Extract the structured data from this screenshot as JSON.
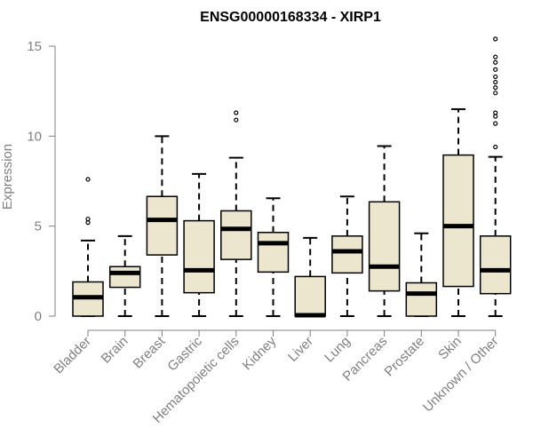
{
  "chart_data": {
    "type": "box",
    "title": "ENSG00000168334 - XIRP1",
    "ylabel": "Expression",
    "xlabel": "",
    "ylim": [
      0,
      15.5
    ],
    "yticks": [
      0,
      5,
      10,
      15
    ],
    "box_fill": "#ede6ce",
    "categories": [
      "Bladder",
      "Brain",
      "Breast",
      "Gastric",
      "Hematopoietic cells",
      "Kidney",
      "Liver",
      "Lung",
      "Pancreas",
      "Prostate",
      "Skin",
      "Unknown / Other"
    ],
    "boxes": [
      {
        "whisker_low": 0,
        "q1": 0,
        "median": 1.05,
        "q3": 1.9,
        "whisker_high": 4.2,
        "outliers": [
          5.2,
          5.4,
          7.6
        ]
      },
      {
        "whisker_low": 0,
        "q1": 1.6,
        "median": 2.4,
        "q3": 2.75,
        "whisker_high": 4.45,
        "outliers": []
      },
      {
        "whisker_low": 0,
        "q1": 3.4,
        "median": 5.35,
        "q3": 6.65,
        "whisker_high": 10.0,
        "outliers": []
      },
      {
        "whisker_low": 0,
        "q1": 1.3,
        "median": 2.55,
        "q3": 5.3,
        "whisker_high": 7.9,
        "outliers": []
      },
      {
        "whisker_low": 0,
        "q1": 3.15,
        "median": 4.85,
        "q3": 5.85,
        "whisker_high": 8.8,
        "outliers": [
          10.9,
          11.3
        ]
      },
      {
        "whisker_low": 0,
        "q1": 2.45,
        "median": 4.05,
        "q3": 4.65,
        "whisker_high": 6.55,
        "outliers": []
      },
      {
        "whisker_low": 0,
        "q1": 0,
        "median": 0.05,
        "q3": 2.2,
        "whisker_high": 4.35,
        "outliers": []
      },
      {
        "whisker_low": 0,
        "q1": 2.4,
        "median": 3.6,
        "q3": 4.45,
        "whisker_high": 6.65,
        "outliers": []
      },
      {
        "whisker_low": 0,
        "q1": 1.4,
        "median": 2.75,
        "q3": 6.35,
        "whisker_high": 9.45,
        "outliers": []
      },
      {
        "whisker_low": 0,
        "q1": 0,
        "median": 1.25,
        "q3": 1.85,
        "whisker_high": 4.6,
        "outliers": []
      },
      {
        "whisker_low": 0,
        "q1": 1.65,
        "median": 5.0,
        "q3": 8.95,
        "whisker_high": 11.5,
        "outliers": []
      },
      {
        "whisker_low": 0,
        "q1": 1.25,
        "median": 2.55,
        "q3": 4.45,
        "whisker_high": 8.85,
        "outliers": [
          9.4,
          10.7,
          11.1,
          11.3,
          12.4,
          12.7,
          13.0,
          13.3,
          13.7,
          14.1,
          14.4,
          15.4
        ]
      }
    ]
  }
}
